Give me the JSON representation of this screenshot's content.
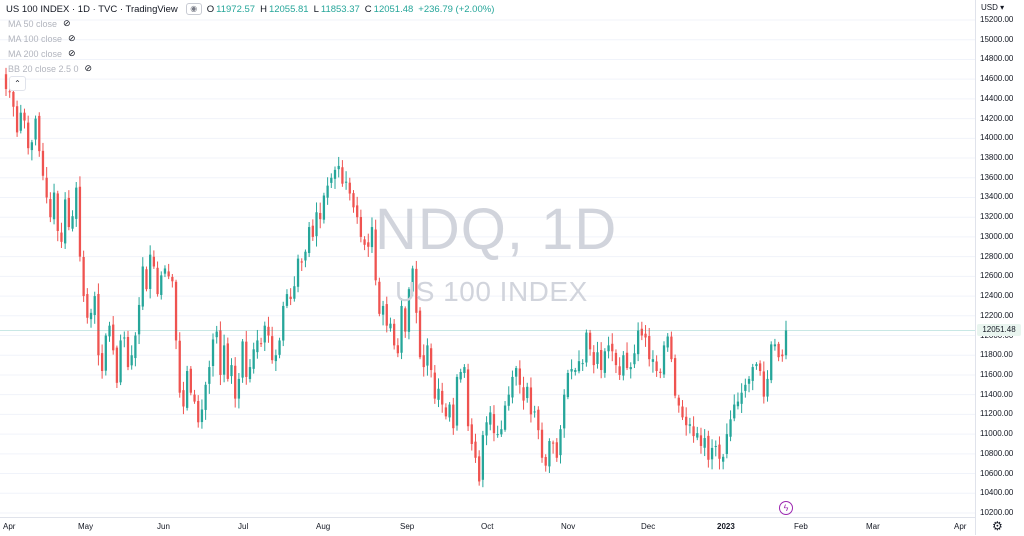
{
  "header": {
    "symbol_title": "US 100 INDEX · 1D · TVC · TradingView",
    "open_label": "O",
    "open": "11972.57",
    "high_label": "H",
    "high": "12055.81",
    "low_label": "L",
    "low": "11853.37",
    "close_label": "C",
    "close": "12051.48",
    "change": "+236.79 (+2.00%)"
  },
  "indicators": [
    {
      "label": "MA 50 close"
    },
    {
      "label": "MA 100 close"
    },
    {
      "label": "MA 200 close"
    },
    {
      "label": "BB 20 close 2.5 0"
    }
  ],
  "watermark": {
    "ticker": "NDQ, 1D",
    "name": "US 100 INDEX"
  },
  "price_scale": {
    "currency": "USD ▾",
    "last_price": "12051.48",
    "ticks": [
      "15200.00",
      "15000.00",
      "14800.00",
      "14600.00",
      "14400.00",
      "14200.00",
      "14000.00",
      "13800.00",
      "13600.00",
      "13400.00",
      "13200.00",
      "13000.00",
      "12800.00",
      "12600.00",
      "12400.00",
      "12200.00",
      "12000.00",
      "11800.00",
      "11600.00",
      "11400.00",
      "11200.00",
      "11000.00",
      "10800.00",
      "10600.00",
      "10400.00",
      "10200.00"
    ]
  },
  "time_scale": {
    "labels": [
      {
        "text": "Apr",
        "bold": false
      },
      {
        "text": "May",
        "bold": false
      },
      {
        "text": "Jun",
        "bold": false
      },
      {
        "text": "Jul",
        "bold": false
      },
      {
        "text": "Aug",
        "bold": false
      },
      {
        "text": "Sep",
        "bold": false
      },
      {
        "text": "Oct",
        "bold": false
      },
      {
        "text": "Nov",
        "bold": false
      },
      {
        "text": "Dec",
        "bold": false
      },
      {
        "text": "2023",
        "bold": true
      },
      {
        "text": "Feb",
        "bold": false
      },
      {
        "text": "Mar",
        "bold": false
      },
      {
        "text": "Apr",
        "bold": false
      }
    ]
  },
  "colors": {
    "up": "#26a69a",
    "down": "#ef5350",
    "grid": "#f0f3fa",
    "lastline": "#26a69a"
  },
  "chart_data": {
    "type": "candlestick",
    "ylim": [
      10200,
      15200
    ],
    "closes": [
      14500,
      14470,
      14320,
      14060,
      14260,
      14180,
      13900,
      13960,
      14200,
      13870,
      13620,
      13400,
      13200,
      13450,
      13060,
      12950,
      13380,
      13100,
      13210,
      13500,
      12800,
      12400,
      12180,
      12230,
      12400,
      11800,
      11640,
      12000,
      12100,
      11850,
      11520,
      11950,
      11980,
      11680,
      11800,
      12000,
      12310,
      12700,
      12470,
      12820,
      12700,
      12420,
      12610,
      12680,
      12600,
      12550,
      11950,
      11420,
      11280,
      11640,
      11420,
      11330,
      11120,
      11250,
      11500,
      11680,
      11960,
      12040,
      11600,
      11900,
      11560,
      11700,
      11360,
      11560,
      11940,
      11580,
      11680,
      11860,
      11950,
      11920,
      12100,
      12000,
      11750,
      11800,
      11950,
      12300,
      12420,
      12370,
      12500,
      12780,
      12740,
      12850,
      13100,
      13000,
      13250,
      13180,
      13420,
      13520,
      13600,
      13680,
      13720,
      13540,
      13560,
      13440,
      13300,
      13200,
      13000,
      12920,
      12900,
      13100,
      12560,
      12220,
      12300,
      12100,
      12120,
      11900,
      11820,
      12300,
      12040,
      12470,
      12680,
      12230,
      11780,
      11680,
      11900,
      11650,
      11360,
      11460,
      11300,
      11180,
      11300,
      11060,
      11580,
      11630,
      11680,
      11080,
      10900,
      10760,
      10520,
      10990,
      11120,
      11220,
      11010,
      11000,
      11050,
      11290,
      11400,
      11580,
      11670,
      11500,
      11340,
      11480,
      11200,
      11230,
      11040,
      10760,
      10680,
      10930,
      10910,
      10760,
      11050,
      11400,
      11620,
      11660,
      11650,
      11740,
      11720,
      12030,
      11860,
      11700,
      11830,
      11650,
      11840,
      11900,
      11840,
      11700,
      11600,
      11800,
      11670,
      11680,
      11820,
      12050,
      12000,
      11980,
      11760,
      11760,
      11640,
      11620,
      11900,
      11990,
      11760,
      11390,
      11290,
      11170,
      11090,
      11100,
      10980,
      11010,
      10880,
      10960,
      10740,
      10860,
      10880,
      10750,
      10770,
      11000,
      11150,
      11300,
      11330,
      11420,
      11500,
      11560,
      11680,
      11710,
      11640,
      11380,
      11560,
      11910,
      11910,
      11780,
      11790,
      12051
    ]
  }
}
